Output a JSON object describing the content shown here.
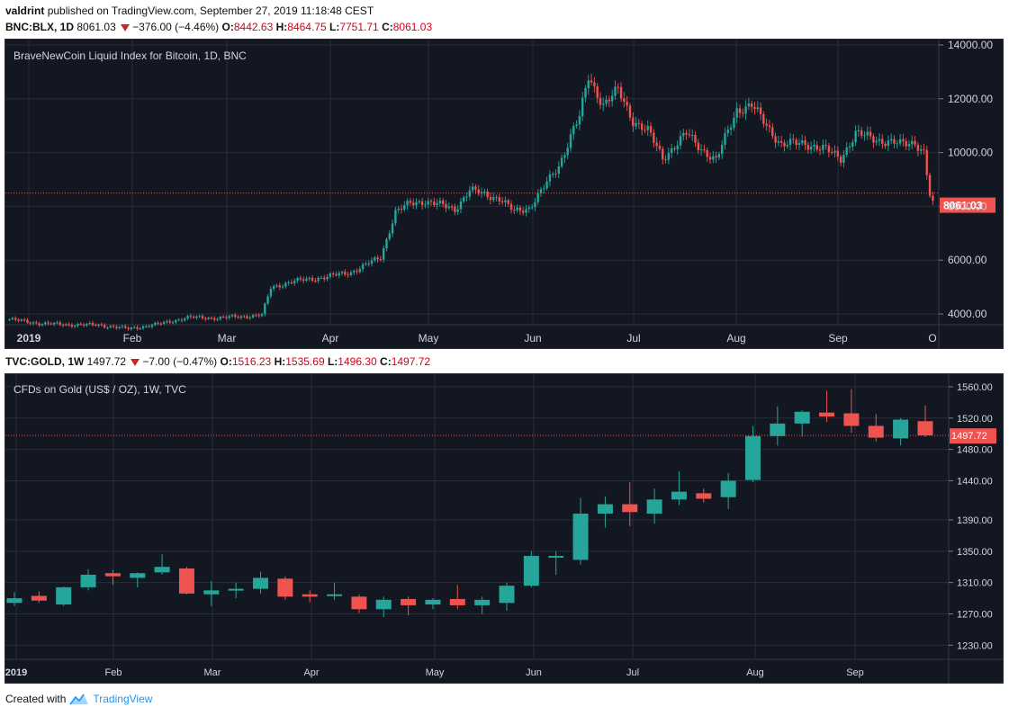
{
  "header": {
    "author": "valdrint",
    "published_text": "published on TradingView.com, September 27, 2019 11:18:48 CEST"
  },
  "chart1": {
    "symbol": "BNC:BLX, 1D",
    "price": "8061.03",
    "change": "−376.00 (−4.46%)",
    "o_label": "O:",
    "o_val": "8442.63",
    "h_label": "H:",
    "h_val": "8464.75",
    "l_label": "L:",
    "l_val": "7751.71",
    "c_label": "C:",
    "c_val": "8061.03",
    "title": "BraveNewCoin Liquid Index for Bitcoin, 1D, BNC",
    "last_label": "8061.03"
  },
  "chart2": {
    "symbol": "TVC:GOLD, 1W",
    "price": "1497.72",
    "change": "−7.00 (−0.47%)",
    "o_label": "O:",
    "o_val": "1516.23",
    "h_label": "H:",
    "h_val": "1535.69",
    "l_label": "L:",
    "l_val": "1496.30",
    "c_label": "C:",
    "c_val": "1497.72",
    "title": "CFDs on Gold (US$ / OZ), 1W, TVC",
    "last_label": "1497.72"
  },
  "footer": {
    "created_with": "Created with",
    "brand": "TradingView"
  },
  "colors": {
    "up": "#26a69a",
    "down": "#ef5350",
    "bg": "#131722",
    "grid": "#2a2e39",
    "axis_text": "#d1d4dc"
  },
  "chart_data": [
    {
      "type": "candlestick",
      "title": "BraveNewCoin Liquid Index for Bitcoin, 1D, BNC",
      "interval": "1D",
      "x_tick_labels": [
        "2019",
        "Feb",
        "Mar",
        "Apr",
        "May",
        "Jun",
        "Jul",
        "Aug",
        "Sep",
        "O"
      ],
      "y_tick_labels": [
        "4000.00",
        "6000.00",
        "8000.00",
        "10000.00",
        "12000.00",
        "14000.00"
      ],
      "ylim": [
        3600,
        14200
      ],
      "last_price": 8061.03,
      "grid": true,
      "close_path": [
        [
          0,
          3800
        ],
        [
          10,
          3650
        ],
        [
          20,
          3600
        ],
        [
          30,
          3590
        ],
        [
          40,
          3450
        ],
        [
          50,
          3620
        ],
        [
          60,
          3870
        ],
        [
          70,
          3850
        ],
        [
          80,
          3920
        ],
        [
          85,
          3960
        ],
        [
          88,
          4970
        ],
        [
          95,
          5200
        ],
        [
          105,
          5350
        ],
        [
          115,
          5550
        ],
        [
          125,
          6100
        ],
        [
          130,
          7800
        ],
        [
          135,
          8100
        ],
        [
          140,
          8200
        ],
        [
          150,
          7900
        ],
        [
          155,
          8600
        ],
        [
          165,
          8300
        ],
        [
          170,
          7800
        ],
        [
          175,
          7950
        ],
        [
          180,
          8700
        ],
        [
          185,
          9500
        ],
        [
          190,
          10900
        ],
        [
          192,
          11300
        ],
        [
          195,
          12800
        ],
        [
          200,
          11800
        ],
        [
          205,
          12300
        ],
        [
          210,
          11200
        ],
        [
          215,
          10800
        ],
        [
          220,
          9800
        ],
        [
          228,
          10700
        ],
        [
          232,
          10250
        ],
        [
          238,
          9700
        ],
        [
          245,
          11600
        ],
        [
          250,
          11750
        ],
        [
          253,
          11300
        ],
        [
          260,
          10300
        ],
        [
          268,
          10350
        ],
        [
          275,
          10100
        ],
        [
          280,
          9800
        ],
        [
          285,
          10700
        ],
        [
          292,
          10500
        ],
        [
          300,
          10300
        ],
        [
          305,
          10400
        ],
        [
          308,
          10000
        ],
        [
          310,
          8400
        ],
        [
          311,
          8061
        ]
      ]
    },
    {
      "type": "candlestick",
      "title": "CFDs on Gold (US$ / OZ), 1W, TVC",
      "interval": "1W",
      "x_tick_labels": [
        "2019",
        "Feb",
        "Mar",
        "Apr",
        "May",
        "Jun",
        "Jul",
        "Aug",
        "Sep"
      ],
      "y_tick_labels": [
        "1230.00",
        "1270.00",
        "1310.00",
        "1350.00",
        "1390.00",
        "1440.00",
        "1480.00",
        "1520.00",
        "1560.00"
      ],
      "ylim": [
        1212,
        1576
      ],
      "last_price": 1497.72,
      "grid": true,
      "candles": [
        {
          "o": 1284,
          "h": 1298,
          "l": 1280,
          "c": 1290
        },
        {
          "o": 1293,
          "h": 1299,
          "l": 1284,
          "c": 1287
        },
        {
          "o": 1282,
          "h": 1305,
          "l": 1280,
          "c": 1304
        },
        {
          "o": 1304,
          "h": 1327,
          "l": 1300,
          "c": 1320
        },
        {
          "o": 1322,
          "h": 1326,
          "l": 1307,
          "c": 1318
        },
        {
          "o": 1316,
          "h": 1323,
          "l": 1304,
          "c": 1322
        },
        {
          "o": 1323,
          "h": 1346,
          "l": 1320,
          "c": 1330
        },
        {
          "o": 1328,
          "h": 1330,
          "l": 1295,
          "c": 1296
        },
        {
          "o": 1295,
          "h": 1312,
          "l": 1280,
          "c": 1300
        },
        {
          "o": 1300,
          "h": 1310,
          "l": 1290,
          "c": 1302
        },
        {
          "o": 1302,
          "h": 1324,
          "l": 1296,
          "c": 1316
        },
        {
          "o": 1315,
          "h": 1318,
          "l": 1288,
          "c": 1292
        },
        {
          "o": 1295,
          "h": 1300,
          "l": 1285,
          "c": 1292
        },
        {
          "o": 1294,
          "h": 1310,
          "l": 1288,
          "c": 1295
        },
        {
          "o": 1292,
          "h": 1295,
          "l": 1271,
          "c": 1276
        },
        {
          "o": 1276,
          "h": 1292,
          "l": 1266,
          "c": 1288
        },
        {
          "o": 1289,
          "h": 1292,
          "l": 1268,
          "c": 1281
        },
        {
          "o": 1282,
          "h": 1290,
          "l": 1276,
          "c": 1288
        },
        {
          "o": 1289,
          "h": 1307,
          "l": 1276,
          "c": 1281
        },
        {
          "o": 1281,
          "h": 1292,
          "l": 1270,
          "c": 1288
        },
        {
          "o": 1284,
          "h": 1310,
          "l": 1274,
          "c": 1306
        },
        {
          "o": 1306,
          "h": 1350,
          "l": 1304,
          "c": 1344
        },
        {
          "o": 1343,
          "h": 1350,
          "l": 1320,
          "c": 1344
        },
        {
          "o": 1339,
          "h": 1418,
          "l": 1333,
          "c": 1398
        },
        {
          "o": 1398,
          "h": 1420,
          "l": 1380,
          "c": 1410
        },
        {
          "o": 1410,
          "h": 1438,
          "l": 1382,
          "c": 1400
        },
        {
          "o": 1398,
          "h": 1430,
          "l": 1385,
          "c": 1416
        },
        {
          "o": 1416,
          "h": 1452,
          "l": 1409,
          "c": 1426
        },
        {
          "o": 1424,
          "h": 1430,
          "l": 1412,
          "c": 1417
        },
        {
          "o": 1419,
          "h": 1450,
          "l": 1404,
          "c": 1440
        },
        {
          "o": 1441,
          "h": 1510,
          "l": 1438,
          "c": 1497
        },
        {
          "o": 1497,
          "h": 1535,
          "l": 1485,
          "c": 1513
        },
        {
          "o": 1513,
          "h": 1530,
          "l": 1496,
          "c": 1528
        },
        {
          "o": 1527,
          "h": 1555,
          "l": 1515,
          "c": 1522
        },
        {
          "o": 1526,
          "h": 1557,
          "l": 1501,
          "c": 1510
        },
        {
          "o": 1510,
          "h": 1525,
          "l": 1490,
          "c": 1495
        },
        {
          "o": 1494,
          "h": 1520,
          "l": 1485,
          "c": 1518
        },
        {
          "o": 1516,
          "h": 1536,
          "l": 1496,
          "c": 1498
        }
      ]
    }
  ]
}
